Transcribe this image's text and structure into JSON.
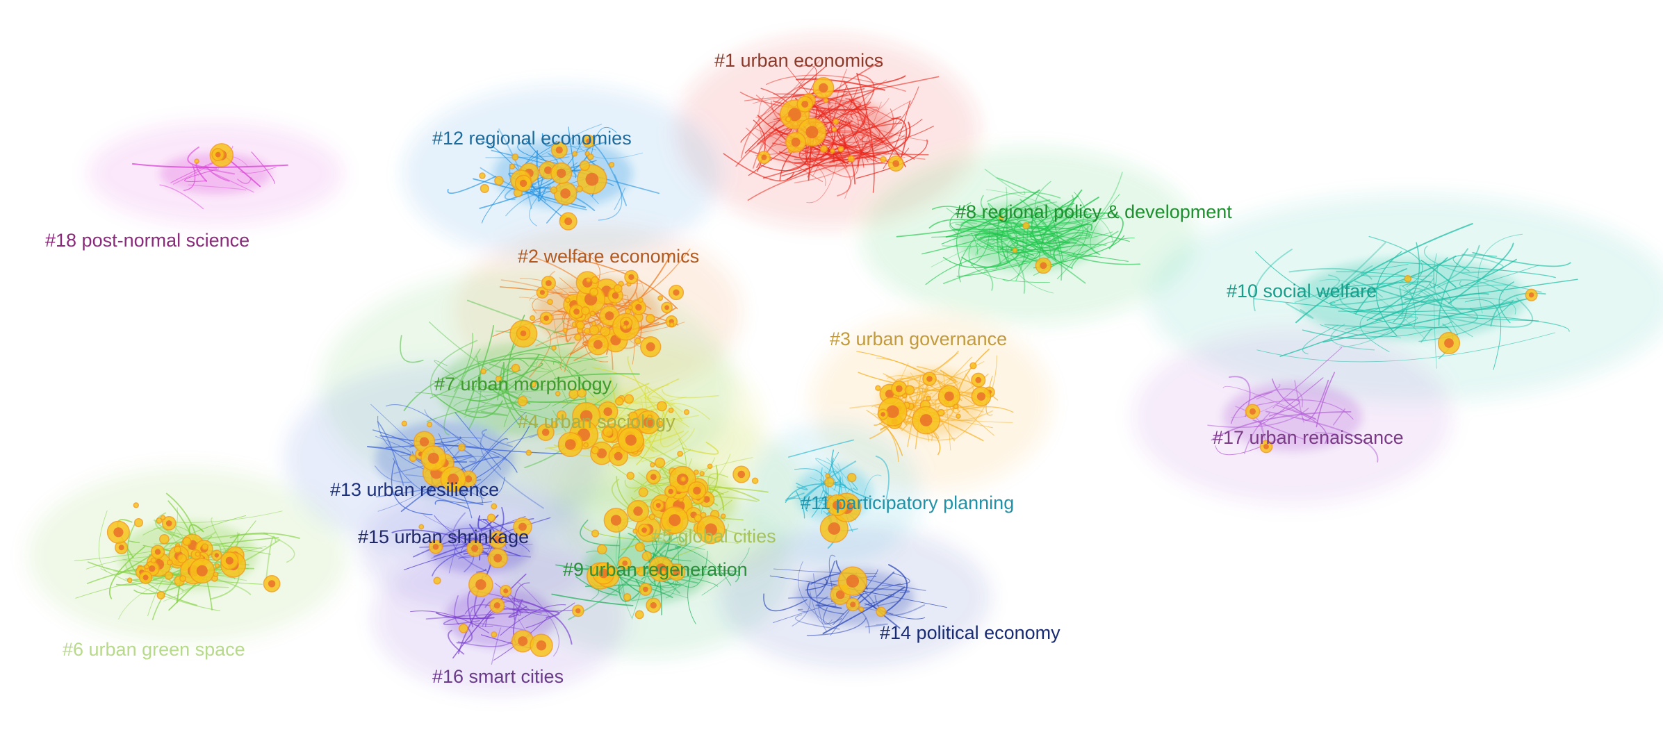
{
  "diagram": {
    "type": "co-citation cluster network",
    "clusters": [
      {
        "id": "c1",
        "label": "#1 urban economics",
        "color": "#e8271c",
        "label_color": "#8a3a2a"
      },
      {
        "id": "c2",
        "label": "#2 welfare economics",
        "color": "#f07a1e",
        "label_color": "#b05a22"
      },
      {
        "id": "c3",
        "label": "#3 urban governance",
        "color": "#f7ae1d",
        "label_color": "#c29a3e"
      },
      {
        "id": "c4",
        "label": "#4 urban sociology",
        "color": "#d7dc2a",
        "label_color": "#a8b04a"
      },
      {
        "id": "c5",
        "label": "#5 global cities",
        "color": "#a8d12b",
        "label_color": "#a6c25a"
      },
      {
        "id": "c6",
        "label": "#6 urban green space",
        "color": "#7fcf3e",
        "label_color": "#b7d98a"
      },
      {
        "id": "c7",
        "label": "#7 urban morphology",
        "color": "#58c24a",
        "label_color": "#3f9a2c"
      },
      {
        "id": "c8",
        "label": "#8 regional policy & development",
        "color": "#1ec64a",
        "label_color": "#1e8f2e"
      },
      {
        "id": "c9",
        "label": "#9 urban regeneration",
        "color": "#1fb25a",
        "label_color": "#2b8f3c"
      },
      {
        "id": "c10",
        "label": "#10 social welfare",
        "color": "#1dbfa6",
        "label_color": "#1a9c8a"
      },
      {
        "id": "c11",
        "label": "#11 participatory planning",
        "color": "#1db4d0",
        "label_color": "#1f92a8"
      },
      {
        "id": "c12",
        "label": "#12 regional economies",
        "color": "#1e8fe0",
        "label_color": "#1e6a9a"
      },
      {
        "id": "c13",
        "label": "#13 urban resilience",
        "color": "#3c63d6",
        "label_color": "#1c2f7a"
      },
      {
        "id": "c14",
        "label": "#14 political economy",
        "color": "#2c47b8",
        "label_color": "#182b72"
      },
      {
        "id": "c15",
        "label": "#15 urban shrinkage",
        "color": "#4d3fcf",
        "label_color": "#1e2768"
      },
      {
        "id": "c16",
        "label": "#16 smart cities",
        "color": "#7a3fd0",
        "label_color": "#6a3a8a"
      },
      {
        "id": "c17",
        "label": "#17 urban renaissance",
        "color": "#b35fd6",
        "label_color": "#7a3a86"
      },
      {
        "id": "c18",
        "label": "#18 post-normal science",
        "color": "#d946d6",
        "label_color": "#8a2a7a"
      }
    ]
  }
}
